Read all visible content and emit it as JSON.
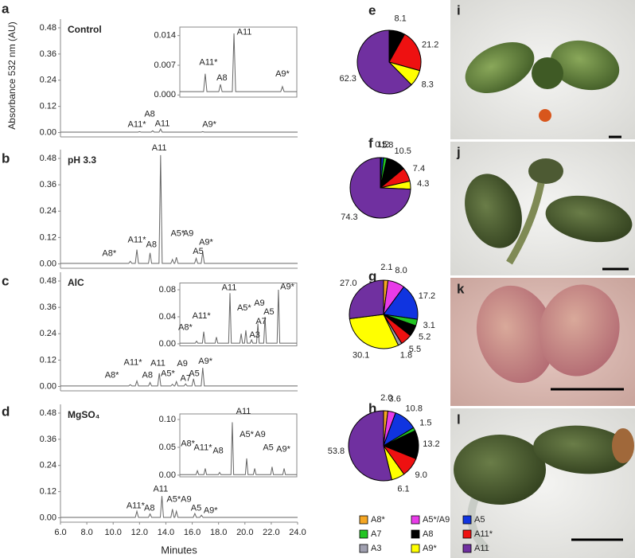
{
  "chart_data": [
    {
      "type": "line",
      "panel": "a",
      "title": "Control",
      "ylabel": "Absorbance 532 nm (AU)",
      "color": "#666666",
      "xlim": [
        6,
        24
      ],
      "ylim": [
        -0.02,
        0.52
      ],
      "yticks": [
        {
          "value": 0,
          "label": "0.00"
        },
        0.12,
        0.24,
        0.36,
        0.48
      ],
      "x": [
        6,
        11.88,
        12,
        12.12,
        12.88,
        13,
        13.12,
        13.48,
        13.6,
        13.72,
        16.68,
        16.8,
        16.92,
        24
      ],
      "values": [
        0.002,
        0.002,
        0.004,
        0.002,
        0.002,
        0.008,
        0.002,
        0.002,
        0.016,
        0.002,
        0.002,
        0.004,
        0.002,
        0.002
      ],
      "annotations": [
        {
          "text": "A8",
          "x": 12.77,
          "y": 0.084
        },
        {
          "text": "A11*",
          "x": 11.8,
          "y": 0.036
        },
        {
          "text": "A11",
          "x": 13.73,
          "y": 0.04
        },
        {
          "text": "A9*",
          "x": 17.3,
          "y": 0.036
        }
      ],
      "inset": {
        "xlim": [
          11,
          18
        ],
        "ylim": [
          -0.0005,
          0.016
        ],
        "yticks": [
          {
            "value": 0,
            "label": "0.000"
          },
          0.007,
          0.014
        ],
        "x": [
          11,
          12.42,
          12.52,
          12.62,
          13.33,
          13.43,
          13.53,
          14.14,
          14.24,
          14.34,
          17.04,
          17.14,
          17.24,
          18
        ],
        "values": [
          0.0008,
          0.0008,
          0.005,
          0.0008,
          0.0008,
          0.0025,
          0.0008,
          0.0008,
          0.0145,
          0.0008,
          0.0008,
          0.002,
          0.0008,
          0.0008
        ],
        "annotations": [
          {
            "text": "A11*",
            "x": 12.71,
            "y": 0.0076
          },
          {
            "text": "A8",
            "x": 13.52,
            "y": 0.004
          },
          {
            "text": "A11",
            "x": 14.86,
            "y": 0.0148
          },
          {
            "text": "A9*",
            "x": 17.14,
            "y": 0.0049
          }
        ]
      }
    },
    {
      "type": "line",
      "panel": "b",
      "title": "pH 3.3",
      "color": "#666666",
      "xlim": [
        6,
        24
      ],
      "ylim": [
        -0.02,
        0.52
      ],
      "yticks": [
        {
          "value": 0,
          "label": "0.00"
        },
        0.12,
        0.24,
        0.36,
        0.48
      ],
      "x": [
        6,
        11.18,
        11.3,
        11.42,
        11.68,
        11.8,
        11.92,
        12.68,
        12.8,
        12.92,
        13.48,
        13.6,
        13.72,
        14.38,
        14.5,
        14.62,
        14.68,
        14.8,
        14.92,
        16.18,
        16.3,
        16.42,
        16.68,
        16.8,
        16.92,
        24
      ],
      "values": [
        0.002,
        0.002,
        0.012,
        0.002,
        0.002,
        0.065,
        0.002,
        0.002,
        0.05,
        0.002,
        0.002,
        0.495,
        0.002,
        0.002,
        0.02,
        0.002,
        0.002,
        0.03,
        0.002,
        0.002,
        0.025,
        0.002,
        0.002,
        0.055,
        0.002,
        0.002
      ],
      "annotations": [
        {
          "text": "A11",
          "x": 13.5,
          "y": 0.527
        },
        {
          "text": "A11*",
          "x": 11.8,
          "y": 0.109
        },
        {
          "text": "A8",
          "x": 12.9,
          "y": 0.087
        },
        {
          "text": "A5*",
          "x": 14.9,
          "y": 0.138
        },
        {
          "text": "A9",
          "x": 15.7,
          "y": 0.138
        },
        {
          "text": "A8*",
          "x": 9.7,
          "y": 0.047
        },
        {
          "text": "A5",
          "x": 16.45,
          "y": 0.055
        },
        {
          "text": "A9*",
          "x": 17.05,
          "y": 0.098
        }
      ]
    },
    {
      "type": "line",
      "panel": "c",
      "title": "AlC",
      "color": "#666666",
      "xlim": [
        6,
        24
      ],
      "ylim": [
        -0.02,
        0.52
      ],
      "yticks": [
        {
          "value": 0,
          "label": "0.00"
        },
        0.12,
        0.24,
        0.36,
        0.48
      ],
      "x": [
        6,
        11.18,
        11.3,
        11.42,
        11.68,
        11.8,
        11.92,
        12.68,
        12.8,
        12.92,
        13.38,
        13.5,
        13.62,
        14.38,
        14.5,
        14.62,
        14.68,
        14.8,
        14.92,
        15.38,
        15.5,
        15.62,
        15.98,
        16.1,
        16.22,
        16.68,
        16.8,
        16.92,
        24
      ],
      "values": [
        0.002,
        0.002,
        0.008,
        0.002,
        0.002,
        0.025,
        0.002,
        0.002,
        0.018,
        0.002,
        0.002,
        0.06,
        0.002,
        0.002,
        0.01,
        0.002,
        0.002,
        0.022,
        0.002,
        0.002,
        0.012,
        0.002,
        0.002,
        0.035,
        0.002,
        0.002,
        0.085,
        0.002,
        0.002
      ],
      "annotations": [
        {
          "text": "A11*",
          "x": 11.5,
          "y": 0.109
        },
        {
          "text": "A8*",
          "x": 9.9,
          "y": 0.051
        },
        {
          "text": "A8",
          "x": 12.6,
          "y": 0.051
        },
        {
          "text": "A11",
          "x": 13.4,
          "y": 0.105
        },
        {
          "text": "A5*",
          "x": 14.15,
          "y": 0.058
        },
        {
          "text": "A9",
          "x": 15.25,
          "y": 0.102
        },
        {
          "text": "A7",
          "x": 15.5,
          "y": 0.036
        },
        {
          "text": "A5",
          "x": 16.15,
          "y": 0.058
        },
        {
          "text": "A9*",
          "x": 17,
          "y": 0.113
        }
      ],
      "inset": {
        "xlim": [
          11,
          18
        ],
        "ylim": [
          -0.003,
          0.09
        ],
        "yticks": [
          {
            "value": 0,
            "label": "0.00"
          },
          0.04,
          0.08
        ],
        "x": [
          11,
          11.92,
          12,
          12.08,
          12.35,
          12.43,
          12.51,
          13.11,
          13.19,
          13.27,
          13.92,
          14,
          14.08,
          14.59,
          14.67,
          14.75,
          14.87,
          14.95,
          15.03,
          15.21,
          15.29,
          15.37,
          15.59,
          15.67,
          15.75,
          16.02,
          16.1,
          16.18,
          16.82,
          16.9,
          16.98,
          18
        ],
        "values": [
          0.001,
          0.001,
          0.004,
          0.001,
          0.001,
          0.018,
          0.001,
          0.001,
          0.01,
          0.001,
          0.001,
          0.075,
          0.001,
          0.001,
          0.015,
          0.001,
          0.001,
          0.02,
          0.001,
          0.001,
          0.006,
          0.001,
          0.001,
          0.03,
          0.001,
          0.001,
          0.04,
          0.001,
          0.001,
          0.08,
          0.001,
          0.001
        ],
        "annotations": [
          {
            "text": "A8*",
            "x": 11.33,
            "y": 0.024
          },
          {
            "text": "A11*",
            "x": 12.29,
            "y": 0.041
          },
          {
            "text": "A11",
            "x": 13.95,
            "y": 0.083
          },
          {
            "text": "A5*",
            "x": 14.85,
            "y": 0.053
          },
          {
            "text": "A9",
            "x": 15.76,
            "y": 0.06
          },
          {
            "text": "A3",
            "x": 15.48,
            "y": 0.013
          },
          {
            "text": "A7",
            "x": 15.86,
            "y": 0.033
          },
          {
            "text": "A5",
            "x": 16.33,
            "y": 0.047
          },
          {
            "text": "A9*",
            "x": 17.43,
            "y": 0.084
          }
        ]
      }
    },
    {
      "type": "line",
      "panel": "d",
      "title": "MgSO₄",
      "xlabel": "Minutes",
      "color": "#666666",
      "xlim": [
        6,
        24
      ],
      "ylim": [
        -0.02,
        0.52
      ],
      "xticks": [
        {
          "value": 6,
          "label": "6.0"
        },
        {
          "value": 8,
          "label": "8.0"
        },
        {
          "value": 10,
          "label": "10.0"
        },
        {
          "value": 12,
          "label": "12.0"
        },
        {
          "value": 14,
          "label": "14.0"
        },
        {
          "value": 16,
          "label": "16.0"
        },
        {
          "value": 18,
          "label": "18.0"
        },
        {
          "value": 20,
          "label": "20.0"
        },
        {
          "value": 22,
          "label": "22.0"
        },
        {
          "value": 24,
          "label": "24.0"
        }
      ],
      "yticks": [
        {
          "value": 0,
          "label": "0.00"
        },
        0.12,
        0.24,
        0.36,
        0.48
      ],
      "x": [
        6,
        11.68,
        11.8,
        11.92,
        12.68,
        12.8,
        12.92,
        13.58,
        13.7,
        13.82,
        14.38,
        14.5,
        14.62,
        14.68,
        14.8,
        14.92,
        16.08,
        16.2,
        16.32,
        16.58,
        16.7,
        16.82,
        24
      ],
      "values": [
        0.002,
        0.002,
        0.03,
        0.002,
        0.002,
        0.018,
        0.002,
        0.002,
        0.1,
        0.002,
        0.002,
        0.04,
        0.002,
        0.002,
        0.03,
        0.002,
        0.002,
        0.02,
        0.002,
        0.002,
        0.012,
        0.002,
        0.002
      ],
      "annotations": [
        {
          "text": "A11",
          "x": 13.6,
          "y": 0.131
        },
        {
          "text": "A11*",
          "x": 11.7,
          "y": 0.055
        },
        {
          "text": "A8",
          "x": 12.75,
          "y": 0.044
        },
        {
          "text": "A5*A9",
          "x": 15,
          "y": 0.084
        },
        {
          "text": "A5",
          "x": 16.3,
          "y": 0.044
        },
        {
          "text": "A9*",
          "x": 17.4,
          "y": 0.033
        }
      ],
      "inset": {
        "xlim": [
          11,
          18
        ],
        "ylim": [
          -0.003,
          0.11
        ],
        "yticks": [
          {
            "value": 0,
            "label": "0.00"
          },
          0.05,
          {
            "value": 0.1,
            "label": "0.10"
          }
        ],
        "x": [
          11,
          11.97,
          12.05,
          12.13,
          12.44,
          12.52,
          12.6,
          13.3,
          13.38,
          13.46,
          14.06,
          14.14,
          14.22,
          14.92,
          15,
          15.08,
          15.4,
          15.48,
          15.56,
          16.44,
          16.52,
          16.6,
          17.16,
          17.24,
          17.32,
          18
        ],
        "values": [
          0.001,
          0.001,
          0.008,
          0.001,
          0.001,
          0.012,
          0.001,
          0.001,
          0.005,
          0.001,
          0.001,
          0.095,
          0.001,
          0.001,
          0.03,
          0.001,
          0.001,
          0.012,
          0.001,
          0.001,
          0.015,
          0.001,
          0.001,
          0.012,
          0.001,
          0.001
        ],
        "annotations": [
          {
            "text": "A8*",
            "x": 11.48,
            "y": 0.056
          },
          {
            "text": "A11*",
            "x": 12.38,
            "y": 0.049
          },
          {
            "text": "A8",
            "x": 13.29,
            "y": 0.043
          },
          {
            "text": "A11",
            "x": 14.81,
            "y": 0.114
          },
          {
            "text": "A5*",
            "x": 15,
            "y": 0.073
          },
          {
            "text": "A9",
            "x": 15.81,
            "y": 0.073
          },
          {
            "text": "A5",
            "x": 16.29,
            "y": 0.049
          },
          {
            "text": "A9*",
            "x": 17.19,
            "y": 0.046
          }
        ]
      }
    },
    {
      "type": "pie",
      "panel": "e",
      "values": [
        8.1,
        21.2,
        8.3,
        62.3
      ],
      "value_labels": [
        "8.1",
        "21.2",
        "8.3",
        "62.3"
      ],
      "colors": [
        "#000000",
        "#ee1111",
        "#ffff00",
        "#7030a0"
      ]
    },
    {
      "type": "pie",
      "panel": "f",
      "values": [
        0.5,
        1.2,
        1.8,
        10.5,
        7.4,
        4.3,
        74.3
      ],
      "value_labels": [
        "0.5",
        "1.2",
        "1.8",
        "10.5",
        "7.4",
        "4.3",
        "74.3"
      ],
      "colors": [
        "#e83be8",
        "#1034e0",
        "#22c422",
        "#000000",
        "#ee1111",
        "#ffff00",
        "#7030a0"
      ]
    },
    {
      "type": "pie",
      "panel": "g",
      "values": [
        2.1,
        8.0,
        17.2,
        3.1,
        5.2,
        5.5,
        1.8,
        30.1,
        27.0
      ],
      "value_labels": [
        "2.1",
        "8.0",
        "17.2",
        "3.1",
        "5.2",
        "5.5",
        "1.8",
        "30.1",
        "27.0"
      ],
      "colors": [
        "#f5a623",
        "#e83be8",
        "#1034e0",
        "#22c422",
        "#000000",
        "#ee1111",
        "#a0a0b0",
        "#ffff00",
        "#7030a0"
      ]
    },
    {
      "type": "pie",
      "panel": "h",
      "values": [
        2.0,
        3.6,
        10.8,
        1.5,
        13.2,
        9.0,
        6.1,
        53.8
      ],
      "value_labels": [
        "2.0",
        "3.6",
        "10.8",
        "1.5",
        "13.2",
        "9.0",
        "6.1",
        "53.8"
      ],
      "colors": [
        "#f5a623",
        "#e83be8",
        "#1034e0",
        "#22c422",
        "#000000",
        "#ee1111",
        "#ffff00",
        "#7030a0"
      ]
    }
  ],
  "legend": [
    {
      "name": "A8*",
      "color": "#f5a623"
    },
    {
      "name": "A5*/A9",
      "color": "#e83be8"
    },
    {
      "name": "A5",
      "color": "#1034e0"
    },
    {
      "name": "A7",
      "color": "#22c422"
    },
    {
      "name": "A8",
      "color": "#000000"
    },
    {
      "name": "A11*",
      "color": "#ee1111"
    },
    {
      "name": "A3",
      "color": "#a0a0b0"
    },
    {
      "name": "A9*",
      "color": "#ffff00"
    },
    {
      "name": "A11",
      "color": "#7030a0"
    }
  ],
  "photos": [
    {
      "label": "i"
    },
    {
      "label": "j"
    },
    {
      "label": "k"
    },
    {
      "label": "l"
    }
  ]
}
